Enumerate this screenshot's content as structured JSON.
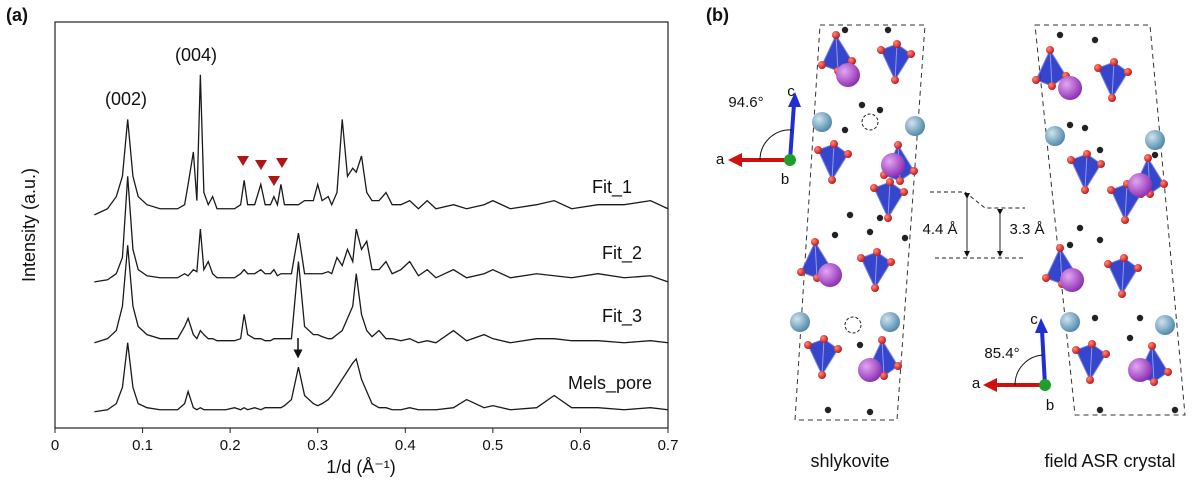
{
  "chart_data": {
    "type": "line",
    "panel_label": "(a)",
    "x_label": "1/d (Å⁻¹)",
    "y_label": "Intensity (a.u.)",
    "xlim": [
      0,
      0.7
    ],
    "xticks": [
      0,
      0.1,
      0.2,
      0.3,
      0.4,
      0.5,
      0.6,
      0.7
    ],
    "ylim": [
      0,
      100
    ],
    "annotations": [
      "(002)",
      "(004)"
    ],
    "x": [
      0.045,
      0.06,
      0.07,
      0.077,
      0.083,
      0.089,
      0.095,
      0.105,
      0.12,
      0.14,
      0.148,
      0.152,
      0.158,
      0.162,
      0.166,
      0.17,
      0.175,
      0.18,
      0.185,
      0.195,
      0.205,
      0.212,
      0.216,
      0.22,
      0.228,
      0.235,
      0.24,
      0.246,
      0.25,
      0.254,
      0.258,
      0.262,
      0.27,
      0.278,
      0.285,
      0.295,
      0.3,
      0.305,
      0.312,
      0.316,
      0.322,
      0.328,
      0.334,
      0.34,
      0.344,
      0.35,
      0.356,
      0.362,
      0.37,
      0.378,
      0.385,
      0.395,
      0.405,
      0.415,
      0.425,
      0.435,
      0.455,
      0.47,
      0.49,
      0.5,
      0.52,
      0.55,
      0.57,
      0.59,
      0.62,
      0.65,
      0.68,
      0.7
    ],
    "series": [
      {
        "name": "Fit_1",
        "color": "#1a1a1a",
        "values": [
          52.5,
          54,
          57,
          62,
          76,
          62,
          57,
          55,
          54,
          54,
          55,
          60,
          68,
          56,
          87,
          58,
          55,
          57,
          54,
          54,
          54,
          55,
          61,
          55,
          55,
          60,
          55,
          55,
          57,
          55,
          60,
          55,
          55,
          55,
          56,
          56,
          60,
          56,
          57,
          55,
          58,
          76,
          62,
          64,
          63,
          67,
          58,
          56,
          56,
          58,
          55,
          55,
          56,
          54,
          56,
          54,
          55,
          54,
          55,
          56,
          54,
          55,
          56,
          54,
          55,
          55,
          56,
          54
        ]
      },
      {
        "name": "Fit_2",
        "color": "#1a1a1a",
        "values": [
          36,
          36.5,
          38,
          42,
          62,
          44,
          39,
          37.5,
          37,
          37,
          38,
          37.5,
          39,
          38.5,
          49,
          39,
          41,
          38,
          37,
          37,
          37,
          38,
          39,
          38,
          38,
          39,
          38,
          38,
          39,
          37.5,
          38,
          38,
          38,
          48,
          38,
          38,
          38,
          38,
          38.5,
          38,
          42,
          40,
          44,
          41,
          49,
          44,
          46,
          39,
          39,
          41,
          38,
          39,
          41,
          37.5,
          39,
          37,
          39,
          37,
          38,
          39,
          37,
          38,
          37.5,
          37,
          38,
          37,
          37.5,
          36
        ]
      },
      {
        "name": "Fit_3",
        "color": "#1a1a1a",
        "values": [
          21,
          22,
          24,
          30,
          45,
          30,
          25,
          23,
          22,
          22,
          25,
          27,
          23,
          22,
          24,
          23,
          22,
          22,
          21.5,
          21.5,
          21.5,
          22,
          28,
          23,
          22,
          22,
          21.5,
          21.5,
          22,
          22,
          22,
          22,
          22,
          41,
          25,
          23,
          23,
          22.5,
          22,
          22,
          23,
          24,
          27,
          30,
          38,
          28,
          24,
          22.5,
          24,
          22,
          22,
          21.5,
          22,
          21,
          21.5,
          21,
          24,
          21.5,
          23,
          22,
          21,
          22,
          22,
          21.5,
          21.5,
          21,
          21.5,
          21
        ]
      },
      {
        "name": "Mels_pore",
        "color": "#1a1a1a",
        "values": [
          4,
          4.5,
          6,
          10,
          21,
          10,
          6,
          5,
          4.5,
          4.5,
          6,
          9,
          5,
          4.5,
          5,
          4.5,
          4.5,
          4.5,
          4.5,
          4.5,
          5,
          4.5,
          5,
          4.5,
          5,
          4.5,
          5,
          5,
          5,
          5,
          5,
          5.5,
          7,
          15,
          8,
          6,
          5.5,
          6,
          7,
          8,
          10,
          12,
          14,
          16,
          17,
          12,
          9,
          6,
          5,
          5,
          4.5,
          4.5,
          5,
          4.5,
          4.5,
          4.5,
          5,
          7,
          5,
          5.5,
          4.5,
          5,
          8,
          5,
          5,
          4.5,
          5,
          4.5
        ]
      }
    ]
  },
  "panel_b": {
    "panel_label": "(b)",
    "left_angle": "94.6°",
    "left_axes": [
      "c",
      "a",
      "b"
    ],
    "spacing_left": "4.4 Å",
    "spacing_right": "3.3 Å",
    "right_angle": "85.4°",
    "right_axes": [
      "c",
      "a",
      "b"
    ],
    "left_caption": "shlykovite",
    "right_caption": "field ASR crystal"
  }
}
